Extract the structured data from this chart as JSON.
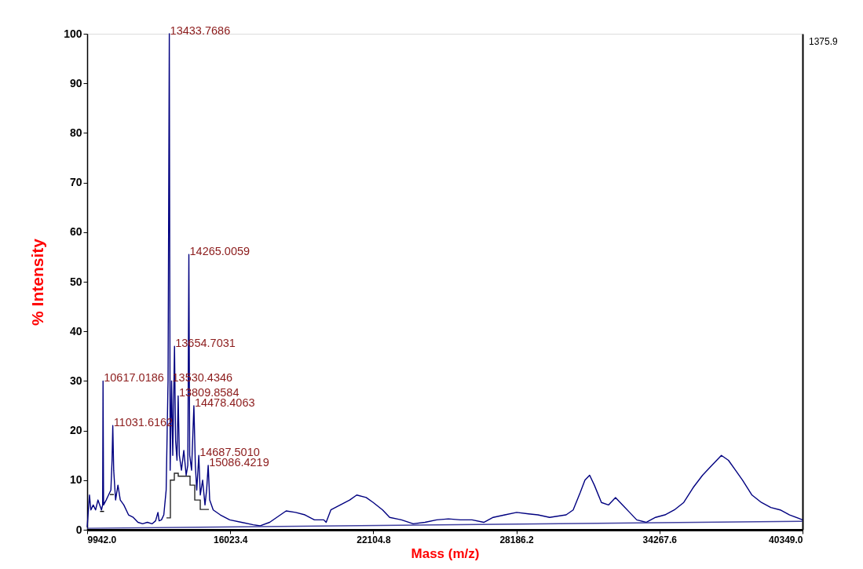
{
  "chart_data": {
    "type": "line",
    "xlabel": "Mass (m/z)",
    "ylabel": "% Intensity",
    "xlim": [
      9942.0,
      40349.0
    ],
    "xticks": [
      {
        "value": 9942.0,
        "label": "9942.0"
      },
      {
        "value": 16023.4,
        "label": "16023.4"
      },
      {
        "value": 22104.8,
        "label": "22104.8"
      },
      {
        "value": 28186.2,
        "label": "28186.2"
      },
      {
        "value": 34267.6,
        "label": "34267.6"
      },
      {
        "value": 40349.0,
        "label": "40349.0"
      }
    ],
    "ylim": [
      0,
      100
    ],
    "yticks": [
      0,
      10,
      20,
      30,
      40,
      50,
      60,
      70,
      80,
      90,
      100
    ],
    "marker": "none",
    "line_style": "solid",
    "series": [
      {
        "color": "#000080",
        "x": [
          9942,
          10040,
          10100,
          10200,
          10300,
          10400,
          10550,
          10600,
          10617,
          10640,
          10750,
          10850,
          10950,
          11000,
          11031,
          11070,
          11150,
          11250,
          11350,
          11500,
          11700,
          11900,
          12100,
          12300,
          12500,
          12700,
          12850,
          12950,
          13000,
          13100,
          13200,
          13300,
          13380,
          13433.77,
          13470,
          13530.43,
          13580,
          13654.7,
          13700,
          13760,
          13809.86,
          13860,
          13950,
          14050,
          14150,
          14220,
          14265.0,
          14300,
          14380,
          14478.4,
          14540,
          14600,
          14687.5,
          14750,
          14850,
          14950,
          15020,
          15086.4,
          15150,
          15300,
          15600,
          16000,
          16500,
          17000,
          17300,
          17700,
          18000,
          18400,
          18800,
          19200,
          19600,
          20000,
          20100,
          20300,
          20700,
          21100,
          21400,
          21800,
          22100,
          22500,
          22800,
          23300,
          23800,
          24300,
          24800,
          25300,
          25800,
          26300,
          26800,
          27200,
          27700,
          28200,
          28700,
          29100,
          29600,
          30300,
          30600,
          30900,
          31100,
          31300,
          31500,
          31800,
          32100,
          32400,
          32700,
          33000,
          33300,
          33700,
          34100,
          34500,
          34900,
          35300,
          35700,
          36100,
          36500,
          36900,
          37200,
          37500,
          37800,
          38200,
          38600,
          39000,
          39400,
          39800,
          40349
        ],
        "values": [
          0.5,
          7,
          4,
          5,
          4,
          6,
          4,
          5,
          30,
          5,
          6,
          7,
          8,
          14,
          21,
          12,
          6,
          9,
          6,
          5,
          3,
          2.5,
          1.5,
          1.2,
          1.5,
          1.2,
          1.8,
          3.5,
          1.8,
          2,
          3,
          8,
          30,
          100,
          12,
          30,
          15,
          37,
          18,
          14,
          27,
          15,
          12,
          16,
          11,
          13,
          55.5,
          15,
          12,
          25,
          13,
          8,
          15,
          7,
          10,
          5,
          8,
          13,
          6,
          4,
          3,
          2,
          1.5,
          1,
          0.8,
          1.5,
          2.5,
          3.8,
          3.5,
          3,
          2,
          2,
          1.5,
          4,
          5,
          6,
          7,
          6.5,
          5.5,
          4,
          2.5,
          2,
          1.2,
          1.5,
          2,
          2.2,
          2,
          2,
          1.5,
          2.5,
          3,
          3.5,
          3.2,
          3,
          2.5,
          3,
          4,
          7.5,
          10,
          11,
          9,
          5.5,
          5,
          6.5,
          5,
          3.5,
          2,
          1.5,
          2.5,
          3,
          4,
          5.5,
          8.5,
          11,
          13,
          15,
          14,
          12,
          10,
          7,
          5.5,
          4.5,
          4,
          3,
          2
        ]
      },
      {
        "color": "#4040a0",
        "x": [
          9942,
          40349
        ],
        "values": [
          0.3,
          1.7
        ]
      },
      {
        "type": "step",
        "color": "#000000",
        "x": [
          10490,
          10660
        ],
        "values": [
          3.7,
          3.7
        ]
      },
      {
        "type": "step",
        "color": "#141414",
        "x": [
          10910,
          11077
        ],
        "values": [
          7.1,
          7.1
        ]
      },
      {
        "type": "step",
        "color": "#282828",
        "x": [
          13313,
          13480,
          13647,
          13814,
          14315,
          14515,
          14749,
          15116
        ],
        "values": [
          2.4,
          10,
          11.4,
          10.8,
          9,
          6,
          4.1,
          4.1
        ]
      }
    ],
    "annotations": [
      {
        "text": "13433.7686",
        "x": 13433.77,
        "y": 100
      },
      {
        "text": "14265.0059",
        "x": 14265.0,
        "y": 55.5
      },
      {
        "text": "13654.7031",
        "x": 13654.7,
        "y": 37
      },
      {
        "text": "10617.0186",
        "x": 10617,
        "y": 30
      },
      {
        "text": "13530.4346",
        "x": 13530.43,
        "y": 30
      },
      {
        "text": "13809.8584",
        "x": 13809.86,
        "y": 27
      },
      {
        "text": "14478.4063",
        "x": 14478.4,
        "y": 25
      },
      {
        "text": "11031.6162",
        "x": 11031,
        "y": 21
      },
      {
        "text": "14687.5010",
        "x": 14687.5,
        "y": 15
      },
      {
        "text": "15086.4219",
        "x": 15086.4,
        "y": 13
      },
      "1375.9"
    ]
  }
}
